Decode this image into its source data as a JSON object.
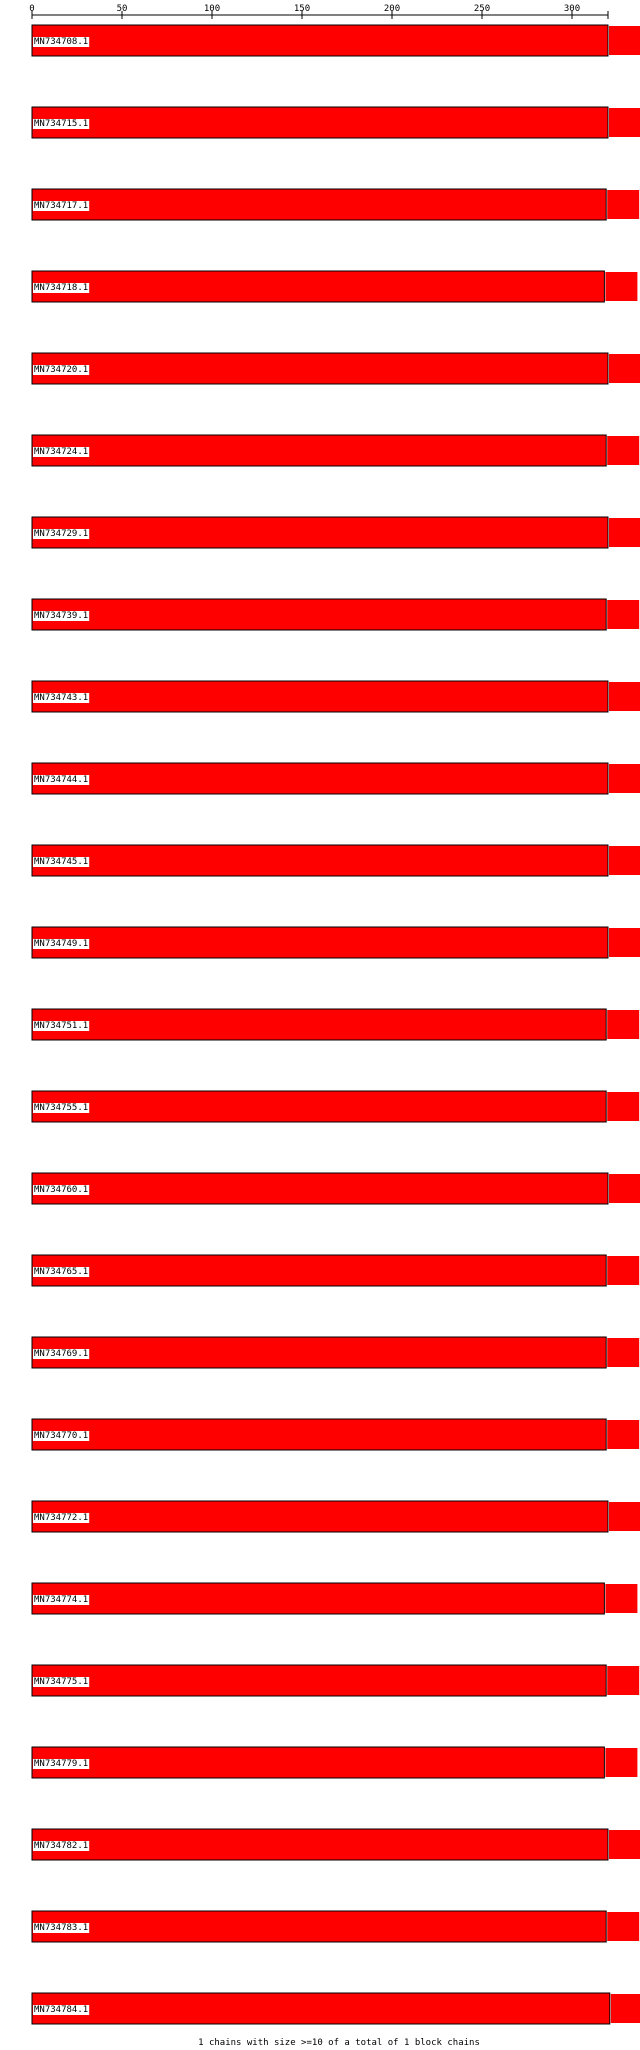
{
  "chart_data": {
    "type": "bar",
    "axis": {
      "ticks": [
        0,
        50,
        100,
        150,
        200,
        250,
        300
      ],
      "xlim": [
        0,
        320
      ]
    },
    "fill_color": "#ff0000",
    "outline_color": "#000000",
    "sequences": [
      {
        "name": "MN734708.1",
        "value": 320
      },
      {
        "name": "MN734715.1",
        "value": 320
      },
      {
        "name": "MN734717.1",
        "value": 319
      },
      {
        "name": "MN734718.1",
        "value": 318
      },
      {
        "name": "MN734720.1",
        "value": 320
      },
      {
        "name": "MN734724.1",
        "value": 319
      },
      {
        "name": "MN734729.1",
        "value": 320
      },
      {
        "name": "MN734739.1",
        "value": 319
      },
      {
        "name": "MN734743.1",
        "value": 320
      },
      {
        "name": "MN734744.1",
        "value": 320
      },
      {
        "name": "MN734745.1",
        "value": 320
      },
      {
        "name": "MN734749.1",
        "value": 320
      },
      {
        "name": "MN734751.1",
        "value": 319
      },
      {
        "name": "MN734755.1",
        "value": 319
      },
      {
        "name": "MN734760.1",
        "value": 320
      },
      {
        "name": "MN734765.1",
        "value": 319
      },
      {
        "name": "MN734769.1",
        "value": 319
      },
      {
        "name": "MN734770.1",
        "value": 319
      },
      {
        "name": "MN734772.1",
        "value": 320
      },
      {
        "name": "MN734774.1",
        "value": 318
      },
      {
        "name": "MN734775.1",
        "value": 319
      },
      {
        "name": "MN734779.1",
        "value": 318
      },
      {
        "name": "MN734782.1",
        "value": 320
      },
      {
        "name": "MN734783.1",
        "value": 319
      },
      {
        "name": "MN734784.1",
        "value": 321
      }
    ]
  },
  "footer": {
    "text": "1 chains with size >=10 of a total of 1 block chains"
  }
}
